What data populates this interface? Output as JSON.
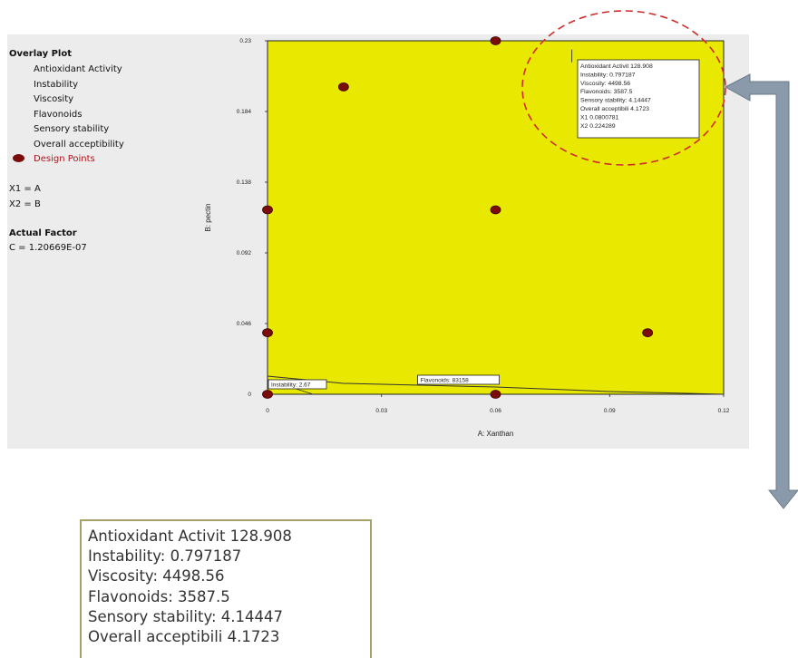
{
  "sidebar": {
    "overlay_title": "Overlay Plot",
    "responses": [
      "Antioxidant Activity",
      "Instability",
      "Viscosity",
      "Flavonoids",
      "Sensory stability",
      "Overall acceptibility"
    ],
    "design_points_label": "Design Points",
    "x1_def": "X1 = A",
    "x2_def": "X2 = B",
    "actual_factor_title": "Actual Factor",
    "actual_factor_value": "C = 1.20669E-07"
  },
  "colors": {
    "region": "#e8e800",
    "point": "#7a0c0c",
    "highlight": "#d12b2b",
    "arrow": "#8a9aaa",
    "panel": "#ececec"
  },
  "chart_data": {
    "type": "scatter",
    "title": "",
    "xlabel": "A: Xanthan",
    "ylabel": "B: pectin",
    "xlim": [
      0,
      0.12
    ],
    "ylim": [
      0,
      0.23
    ],
    "x_ticks": [
      "0",
      "0.03",
      "0.06",
      "0.09",
      "0.12"
    ],
    "y_ticks": [
      "0",
      "0.046",
      "0.092",
      "0.138",
      "0.184",
      "0.23"
    ],
    "series": [
      {
        "points": [
          [
            0,
            0
          ],
          [
            0.06,
            0
          ],
          [
            0,
            0.04
          ],
          [
            0.1,
            0.04
          ],
          [
            0,
            0.12
          ],
          [
            0.06,
            0.12
          ],
          [
            0.02,
            0.2
          ],
          [
            0.06,
            0.23
          ]
        ]
      }
    ],
    "boundary_labels": [
      "Instability: 2.67",
      "Flavonoids: 83158"
    ],
    "flag": {
      "x": 0.0800781,
      "y": 0.224289,
      "lines": [
        "Antioxidant Activit 128.908",
        "Instability: 0.797187",
        "Viscosity: 4498.56",
        "Flavonoids: 3587.5",
        "Sensory stability: 4.14447",
        "Overall acceptibili 4.1723",
        "X1 0.0800781",
        "X2 0.224289"
      ]
    }
  },
  "zoom": {
    "lines": [
      "Antioxidant Activit 128.908",
      "Instability: 0.797187",
      "Viscosity: 4498.56",
      "Flavonoids: 3587.5",
      "Sensory stability: 4.14447",
      "Overall acceptibili 4.1723"
    ]
  }
}
